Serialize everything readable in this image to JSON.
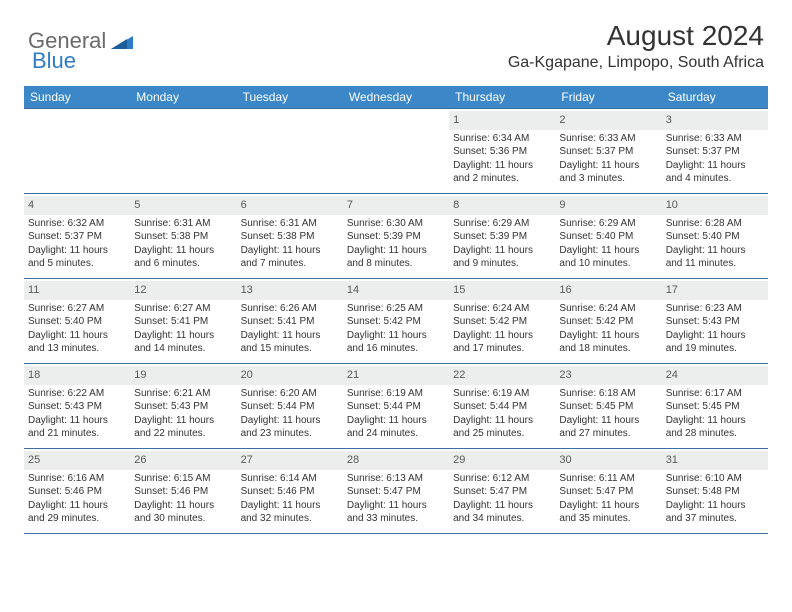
{
  "logo": {
    "general": "General",
    "blue": "Blue"
  },
  "title": "August 2024",
  "location": "Ga-Kgapane, Limpopo, South Africa",
  "colors": {
    "header_bg": "#3c87c7",
    "header_text": "#ffffff",
    "week_border": "#3c6f9e",
    "daynum_bg": "#eceded",
    "text": "#333333",
    "logo_gray": "#6a6a6a",
    "logo_blue": "#2f7bc6"
  },
  "daynames": [
    "Sunday",
    "Monday",
    "Tuesday",
    "Wednesday",
    "Thursday",
    "Friday",
    "Saturday"
  ],
  "weeks": [
    [
      {
        "n": "",
        "sunrise": "",
        "sunset": "",
        "daylight": ""
      },
      {
        "n": "",
        "sunrise": "",
        "sunset": "",
        "daylight": ""
      },
      {
        "n": "",
        "sunrise": "",
        "sunset": "",
        "daylight": ""
      },
      {
        "n": "",
        "sunrise": "",
        "sunset": "",
        "daylight": ""
      },
      {
        "n": "1",
        "sunrise": "Sunrise: 6:34 AM",
        "sunset": "Sunset: 5:36 PM",
        "daylight": "Daylight: 11 hours and 2 minutes."
      },
      {
        "n": "2",
        "sunrise": "Sunrise: 6:33 AM",
        "sunset": "Sunset: 5:37 PM",
        "daylight": "Daylight: 11 hours and 3 minutes."
      },
      {
        "n": "3",
        "sunrise": "Sunrise: 6:33 AM",
        "sunset": "Sunset: 5:37 PM",
        "daylight": "Daylight: 11 hours and 4 minutes."
      }
    ],
    [
      {
        "n": "4",
        "sunrise": "Sunrise: 6:32 AM",
        "sunset": "Sunset: 5:37 PM",
        "daylight": "Daylight: 11 hours and 5 minutes."
      },
      {
        "n": "5",
        "sunrise": "Sunrise: 6:31 AM",
        "sunset": "Sunset: 5:38 PM",
        "daylight": "Daylight: 11 hours and 6 minutes."
      },
      {
        "n": "6",
        "sunrise": "Sunrise: 6:31 AM",
        "sunset": "Sunset: 5:38 PM",
        "daylight": "Daylight: 11 hours and 7 minutes."
      },
      {
        "n": "7",
        "sunrise": "Sunrise: 6:30 AM",
        "sunset": "Sunset: 5:39 PM",
        "daylight": "Daylight: 11 hours and 8 minutes."
      },
      {
        "n": "8",
        "sunrise": "Sunrise: 6:29 AM",
        "sunset": "Sunset: 5:39 PM",
        "daylight": "Daylight: 11 hours and 9 minutes."
      },
      {
        "n": "9",
        "sunrise": "Sunrise: 6:29 AM",
        "sunset": "Sunset: 5:40 PM",
        "daylight": "Daylight: 11 hours and 10 minutes."
      },
      {
        "n": "10",
        "sunrise": "Sunrise: 6:28 AM",
        "sunset": "Sunset: 5:40 PM",
        "daylight": "Daylight: 11 hours and 11 minutes."
      }
    ],
    [
      {
        "n": "11",
        "sunrise": "Sunrise: 6:27 AM",
        "sunset": "Sunset: 5:40 PM",
        "daylight": "Daylight: 11 hours and 13 minutes."
      },
      {
        "n": "12",
        "sunrise": "Sunrise: 6:27 AM",
        "sunset": "Sunset: 5:41 PM",
        "daylight": "Daylight: 11 hours and 14 minutes."
      },
      {
        "n": "13",
        "sunrise": "Sunrise: 6:26 AM",
        "sunset": "Sunset: 5:41 PM",
        "daylight": "Daylight: 11 hours and 15 minutes."
      },
      {
        "n": "14",
        "sunrise": "Sunrise: 6:25 AM",
        "sunset": "Sunset: 5:42 PM",
        "daylight": "Daylight: 11 hours and 16 minutes."
      },
      {
        "n": "15",
        "sunrise": "Sunrise: 6:24 AM",
        "sunset": "Sunset: 5:42 PM",
        "daylight": "Daylight: 11 hours and 17 minutes."
      },
      {
        "n": "16",
        "sunrise": "Sunrise: 6:24 AM",
        "sunset": "Sunset: 5:42 PM",
        "daylight": "Daylight: 11 hours and 18 minutes."
      },
      {
        "n": "17",
        "sunrise": "Sunrise: 6:23 AM",
        "sunset": "Sunset: 5:43 PM",
        "daylight": "Daylight: 11 hours and 19 minutes."
      }
    ],
    [
      {
        "n": "18",
        "sunrise": "Sunrise: 6:22 AM",
        "sunset": "Sunset: 5:43 PM",
        "daylight": "Daylight: 11 hours and 21 minutes."
      },
      {
        "n": "19",
        "sunrise": "Sunrise: 6:21 AM",
        "sunset": "Sunset: 5:43 PM",
        "daylight": "Daylight: 11 hours and 22 minutes."
      },
      {
        "n": "20",
        "sunrise": "Sunrise: 6:20 AM",
        "sunset": "Sunset: 5:44 PM",
        "daylight": "Daylight: 11 hours and 23 minutes."
      },
      {
        "n": "21",
        "sunrise": "Sunrise: 6:19 AM",
        "sunset": "Sunset: 5:44 PM",
        "daylight": "Daylight: 11 hours and 24 minutes."
      },
      {
        "n": "22",
        "sunrise": "Sunrise: 6:19 AM",
        "sunset": "Sunset: 5:44 PM",
        "daylight": "Daylight: 11 hours and 25 minutes."
      },
      {
        "n": "23",
        "sunrise": "Sunrise: 6:18 AM",
        "sunset": "Sunset: 5:45 PM",
        "daylight": "Daylight: 11 hours and 27 minutes."
      },
      {
        "n": "24",
        "sunrise": "Sunrise: 6:17 AM",
        "sunset": "Sunset: 5:45 PM",
        "daylight": "Daylight: 11 hours and 28 minutes."
      }
    ],
    [
      {
        "n": "25",
        "sunrise": "Sunrise: 6:16 AM",
        "sunset": "Sunset: 5:46 PM",
        "daylight": "Daylight: 11 hours and 29 minutes."
      },
      {
        "n": "26",
        "sunrise": "Sunrise: 6:15 AM",
        "sunset": "Sunset: 5:46 PM",
        "daylight": "Daylight: 11 hours and 30 minutes."
      },
      {
        "n": "27",
        "sunrise": "Sunrise: 6:14 AM",
        "sunset": "Sunset: 5:46 PM",
        "daylight": "Daylight: 11 hours and 32 minutes."
      },
      {
        "n": "28",
        "sunrise": "Sunrise: 6:13 AM",
        "sunset": "Sunset: 5:47 PM",
        "daylight": "Daylight: 11 hours and 33 minutes."
      },
      {
        "n": "29",
        "sunrise": "Sunrise: 6:12 AM",
        "sunset": "Sunset: 5:47 PM",
        "daylight": "Daylight: 11 hours and 34 minutes."
      },
      {
        "n": "30",
        "sunrise": "Sunrise: 6:11 AM",
        "sunset": "Sunset: 5:47 PM",
        "daylight": "Daylight: 11 hours and 35 minutes."
      },
      {
        "n": "31",
        "sunrise": "Sunrise: 6:10 AM",
        "sunset": "Sunset: 5:48 PM",
        "daylight": "Daylight: 11 hours and 37 minutes."
      }
    ]
  ]
}
